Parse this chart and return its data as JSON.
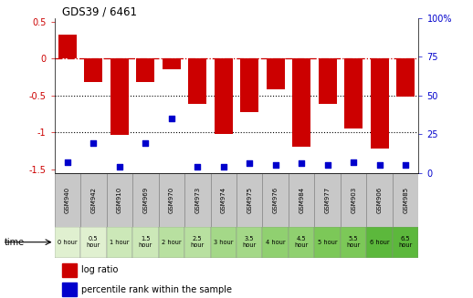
{
  "title": "GDS39 / 6461",
  "samples": [
    "GSM940",
    "GSM942",
    "GSM910",
    "GSM969",
    "GSM970",
    "GSM973",
    "GSM974",
    "GSM975",
    "GSM976",
    "GSM984",
    "GSM977",
    "GSM903",
    "GSM906",
    "GSM985"
  ],
  "time_labels": [
    "0 hour",
    "0.5\nhour",
    "1 hour",
    "1.5\nhour",
    "2 hour",
    "2.5\nhour",
    "3 hour",
    "3.5\nhour",
    "4 hour",
    "4.5\nhour",
    "5 hour",
    "5.5\nhour",
    "6 hour",
    "6.5\nhour"
  ],
  "time_colors": [
    "#e0f0d0",
    "#e0f0d0",
    "#cce8b8",
    "#cce8b8",
    "#b8e0a0",
    "#b8e0a0",
    "#a4d888",
    "#a4d888",
    "#90d070",
    "#90d070",
    "#7cc858",
    "#7cc858",
    "#5cb83c",
    "#5cb83c"
  ],
  "log_ratio": [
    0.32,
    -0.32,
    -1.03,
    -0.32,
    -0.15,
    -0.62,
    -1.02,
    -0.73,
    -0.42,
    -1.2,
    -0.62,
    -0.95,
    -1.22,
    -0.52
  ],
  "percentile": [
    7,
    19,
    4,
    19,
    35,
    4,
    4,
    6,
    5,
    6,
    5,
    7,
    5,
    5
  ],
  "bar_color": "#cc0000",
  "dot_color": "#0000cc",
  "gsm_color": "#c8c8c8",
  "ylim_left": [
    -1.55,
    0.55
  ],
  "ylim_right": [
    0,
    100
  ],
  "yticks_left": [
    0.5,
    0,
    -0.5,
    -1.0,
    -1.5
  ],
  "yticks_right": [
    100,
    75,
    50,
    25,
    0
  ],
  "legend_labels": [
    "log ratio",
    "percentile rank within the sample"
  ]
}
